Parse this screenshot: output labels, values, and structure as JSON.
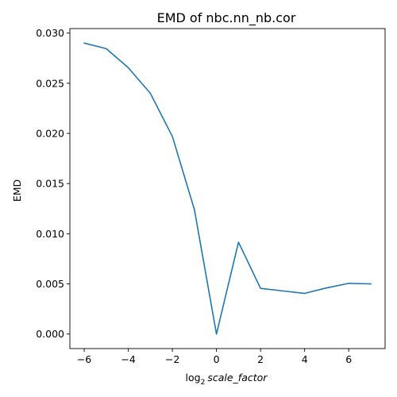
{
  "chart_data": {
    "type": "line",
    "title": "EMD of nbc.nn_nb.cor",
    "xlabel_prefix": "log",
    "xlabel_sub": "2",
    "xlabel_var": "scale_factor",
    "ylabel": "EMD",
    "xlim": [
      -6.65,
      7.65
    ],
    "ylim": [
      -0.00145,
      0.03045
    ],
    "x_ticks": [
      -6,
      -4,
      -2,
      0,
      2,
      4,
      6
    ],
    "x_tick_labels": [
      "−6",
      "−4",
      "−2",
      "0",
      "2",
      "4",
      "6"
    ],
    "y_ticks": [
      0.0,
      0.005,
      0.01,
      0.015,
      0.02,
      0.025,
      0.03
    ],
    "y_tick_labels": [
      "0.000",
      "0.005",
      "0.010",
      "0.015",
      "0.020",
      "0.025",
      "0.030"
    ],
    "grid": false,
    "series": [
      {
        "color": "#1f77b4",
        "x": [
          -6,
          -5,
          -4,
          -3,
          -2,
          -1,
          0,
          1,
          2,
          3,
          4,
          5,
          6,
          7
        ],
        "y": [
          0.029,
          0.02845,
          0.02655,
          0.024,
          0.0197,
          0.0124,
          0.0,
          0.00915,
          0.00455,
          0.0043,
          0.00405,
          0.0046,
          0.00505,
          0.005
        ]
      }
    ]
  }
}
